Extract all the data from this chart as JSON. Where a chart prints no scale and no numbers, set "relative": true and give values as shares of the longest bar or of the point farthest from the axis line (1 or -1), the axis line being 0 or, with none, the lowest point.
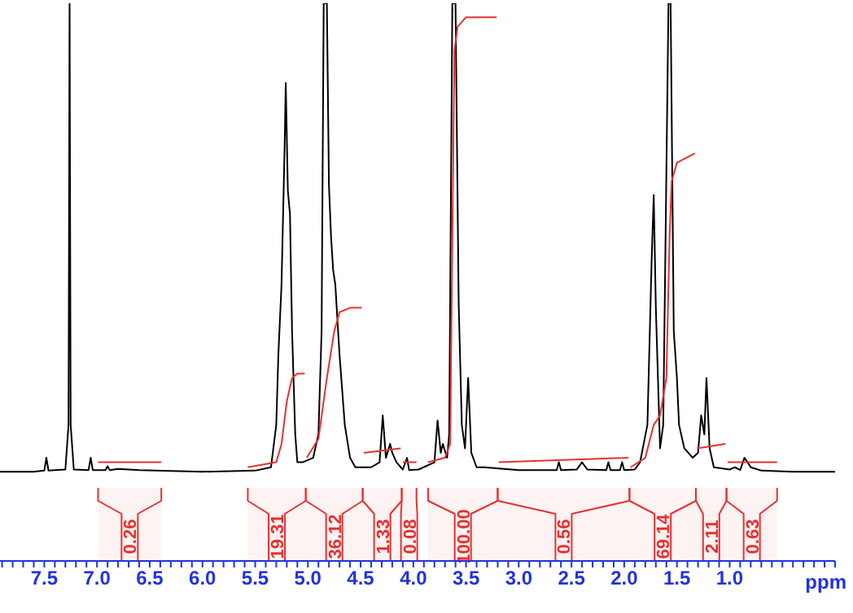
{
  "chart_data": {
    "type": "line",
    "relative": true,
    "xlabel": "ppm",
    "xlim": [
      7.92,
      0.0
    ],
    "xticks": [
      {
        "value": 7.9,
        "label": null
      },
      {
        "value": 7.8,
        "label": null
      },
      {
        "value": 7.7,
        "label": null
      },
      {
        "value": 7.6,
        "label": null
      },
      {
        "value": 7.5,
        "label": "7.5"
      },
      {
        "value": 7.4,
        "label": null
      },
      {
        "value": 7.3,
        "label": null
      },
      {
        "value": 7.2,
        "label": null
      },
      {
        "value": 7.1,
        "label": null
      },
      {
        "value": 7.0,
        "label": "7.0"
      },
      {
        "value": 6.9,
        "label": null
      },
      {
        "value": 6.8,
        "label": null
      },
      {
        "value": 6.7,
        "label": null
      },
      {
        "value": 6.6,
        "label": null
      },
      {
        "value": 6.5,
        "label": "6.5"
      },
      {
        "value": 6.4,
        "label": null
      },
      {
        "value": 6.3,
        "label": null
      },
      {
        "value": 6.2,
        "label": null
      },
      {
        "value": 6.1,
        "label": null
      },
      {
        "value": 6.0,
        "label": "6.0"
      },
      {
        "value": 5.9,
        "label": null
      },
      {
        "value": 5.8,
        "label": null
      },
      {
        "value": 5.7,
        "label": null
      },
      {
        "value": 5.6,
        "label": null
      },
      {
        "value": 5.5,
        "label": "5.5"
      },
      {
        "value": 5.4,
        "label": null
      },
      {
        "value": 5.3,
        "label": null
      },
      {
        "value": 5.2,
        "label": null
      },
      {
        "value": 5.1,
        "label": null
      },
      {
        "value": 5.0,
        "label": "5.0"
      },
      {
        "value": 4.9,
        "label": null
      },
      {
        "value": 4.8,
        "label": null
      },
      {
        "value": 4.7,
        "label": null
      },
      {
        "value": 4.6,
        "label": null
      },
      {
        "value": 4.5,
        "label": "4.5"
      },
      {
        "value": 4.4,
        "label": null
      },
      {
        "value": 4.3,
        "label": null
      },
      {
        "value": 4.2,
        "label": null
      },
      {
        "value": 4.1,
        "label": null
      },
      {
        "value": 4.0,
        "label": "4.0"
      },
      {
        "value": 3.9,
        "label": null
      },
      {
        "value": 3.8,
        "label": null
      },
      {
        "value": 3.7,
        "label": null
      },
      {
        "value": 3.6,
        "label": null
      },
      {
        "value": 3.5,
        "label": "3.5"
      },
      {
        "value": 3.4,
        "label": null
      },
      {
        "value": 3.3,
        "label": null
      },
      {
        "value": 3.2,
        "label": null
      },
      {
        "value": 3.1,
        "label": null
      },
      {
        "value": 3.0,
        "label": "3.0"
      },
      {
        "value": 2.9,
        "label": null
      },
      {
        "value": 2.8,
        "label": null
      },
      {
        "value": 2.7,
        "label": null
      },
      {
        "value": 2.6,
        "label": null
      },
      {
        "value": 2.5,
        "label": "2.5"
      },
      {
        "value": 2.4,
        "label": null
      },
      {
        "value": 2.3,
        "label": null
      },
      {
        "value": 2.2,
        "label": null
      },
      {
        "value": 2.1,
        "label": null
      },
      {
        "value": 2.0,
        "label": "2.0"
      },
      {
        "value": 1.9,
        "label": null
      },
      {
        "value": 1.8,
        "label": null
      },
      {
        "value": 1.7,
        "label": null
      },
      {
        "value": 1.6,
        "label": null
      },
      {
        "value": 1.5,
        "label": "1.5"
      },
      {
        "value": 1.4,
        "label": null
      },
      {
        "value": 1.3,
        "label": null
      },
      {
        "value": 1.2,
        "label": null
      },
      {
        "value": 1.1,
        "label": null
      },
      {
        "value": 1.0,
        "label": "1.0"
      },
      {
        "value": 0.9,
        "label": null
      },
      {
        "value": 0.8,
        "label": null
      },
      {
        "value": 0.7,
        "label": null
      },
      {
        "value": 0.6,
        "label": null
      },
      {
        "value": 0.5,
        "label": null
      },
      {
        "value": 0.4,
        "label": null
      },
      {
        "value": 0.3,
        "label": null
      },
      {
        "value": 0.2,
        "label": null
      },
      {
        "value": 0.1,
        "label": null
      },
      {
        "value": 0.0,
        "label": null
      }
    ],
    "series": [
      {
        "color": "#000000",
        "x": [
          7.92,
          7.6,
          7.5,
          7.48,
          7.46,
          7.3,
          7.27,
          7.26,
          7.25,
          7.22,
          7.08,
          7.06,
          7.04,
          6.92,
          6.9,
          6.88,
          6.8,
          6.6,
          6.0,
          5.5,
          5.35,
          5.3,
          5.28,
          5.25,
          5.22,
          5.21,
          5.19,
          5.17,
          5.15,
          5.12,
          5.1,
          5.05,
          4.95,
          4.9,
          4.87,
          4.85,
          4.82,
          4.8,
          4.78,
          4.76,
          4.74,
          4.7,
          4.65,
          4.6,
          4.55,
          4.4,
          4.32,
          4.29,
          4.26,
          4.22,
          4.2,
          4.16,
          4.1,
          4.06,
          4.04,
          3.95,
          3.8,
          3.77,
          3.74,
          3.72,
          3.68,
          3.66,
          3.63,
          3.6,
          3.57,
          3.54,
          3.51,
          3.48,
          3.45,
          3.4,
          3.33,
          3.0,
          2.64,
          2.62,
          2.6,
          2.45,
          2.4,
          2.35,
          2.17,
          2.15,
          2.13,
          2.04,
          2.02,
          2.0,
          1.9,
          1.85,
          1.78,
          1.74,
          1.72,
          1.7,
          1.66,
          1.63,
          1.58,
          1.56,
          1.53,
          1.5,
          1.48,
          1.43,
          1.35,
          1.3,
          1.27,
          1.24,
          1.22,
          1.19,
          1.15,
          1.0,
          0.95,
          0.9,
          0.86,
          0.83,
          0.8,
          0.7,
          0.4,
          0.0
        ],
        "values": [
          0.16,
          0.16,
          0.162,
          0.185,
          0.162,
          0.164,
          0.244,
          1,
          0.244,
          0.164,
          0.163,
          0.185,
          0.163,
          0.163,
          0.17,
          0.163,
          0.165,
          0.163,
          0.16,
          0.162,
          0.168,
          0.244,
          0.37,
          0.496,
          0.748,
          0.857,
          0.664,
          0.622,
          0.412,
          0.227,
          0.177,
          0.177,
          0.185,
          0.227,
          0.412,
          1,
          1,
          0.672,
          0.58,
          0.521,
          0.496,
          0.37,
          0.244,
          0.185,
          0.168,
          0.168,
          0.177,
          0.261,
          0.185,
          0.21,
          0.194,
          0.177,
          0.164,
          0.185,
          0.163,
          0.164,
          0.177,
          0.252,
          0.194,
          0.21,
          0.185,
          0.227,
          1,
          1,
          0.462,
          0.244,
          0.202,
          0.328,
          0.194,
          0.168,
          0.168,
          0.163,
          0.163,
          0.177,
          0.163,
          0.164,
          0.177,
          0.164,
          0.163,
          0.177,
          0.163,
          0.163,
          0.177,
          0.163,
          0.164,
          0.177,
          0.244,
          0.538,
          0.656,
          0.454,
          0.202,
          0.244,
          1,
          1,
          0.412,
          0.328,
          0.244,
          0.202,
          0.185,
          0.194,
          0.261,
          0.227,
          0.328,
          0.202,
          0.168,
          0.164,
          0.168,
          0.163,
          0.185,
          0.177,
          0.168,
          0.162,
          0.16,
          0.16
        ]
      },
      {
        "color": "#e83030",
        "x": [
          6.99,
          6.39,
          6.0,
          5.57,
          5.3,
          5.25,
          5.2,
          5.15,
          5.1,
          5.03,
          5.02,
          5.01,
          4.9,
          4.82,
          4.75,
          4.7,
          4.6,
          4.49,
          4.48,
          4.47,
          4.12,
          4.11,
          4.1,
          3.97,
          3.9,
          3.86,
          3.7,
          3.65,
          3.63,
          3.61,
          3.58,
          3.5,
          3.21,
          3.2,
          3.19,
          1.96,
          1.95,
          1.94,
          1.8,
          1.72,
          1.66,
          1.6,
          1.57,
          1.55,
          1.5,
          1.33,
          1.32,
          1.31,
          1.04,
          1.03,
          1.02,
          0.55
        ],
        "values": [
          0.177,
          0.177,
          null,
          0.168,
          0.177,
          0.21,
          0.286,
          0.328,
          0.336,
          0.336,
          null,
          0.185,
          0.219,
          0.328,
          0.412,
          0.446,
          0.454,
          0.454,
          null,
          0.194,
          0.202,
          null,
          0.177,
          0.177,
          null,
          0.177,
          0.185,
          0.21,
          0.58,
          0.916,
          0.958,
          0.975,
          0.975,
          null,
          0.177,
          0.185,
          null,
          0.168,
          0.185,
          0.244,
          0.261,
          0.328,
          0.58,
          0.681,
          0.714,
          0.731,
          null,
          0.202,
          0.21,
          null,
          0.177,
          0.177
        ]
      }
    ],
    "bands": [
      {
        "axis": "x",
        "from": 6.99,
        "to": 6.39,
        "label": "0.26",
        "color": "#e83030"
      },
      {
        "axis": "x",
        "from": 5.57,
        "to": 5.02,
        "label": "19.31",
        "color": "#e83030"
      },
      {
        "axis": "x",
        "from": 5.02,
        "to": 4.48,
        "label": "36.12",
        "color": "#e83030"
      },
      {
        "axis": "x",
        "from": 4.48,
        "to": 4.11,
        "label": "1.33",
        "color": "#e83030"
      },
      {
        "axis": "x",
        "from": 4.11,
        "to": 3.97,
        "label": "0.08",
        "color": "#e83030"
      },
      {
        "axis": "x",
        "from": 3.86,
        "to": 3.2,
        "label": "100.00",
        "color": "#e83030"
      },
      {
        "axis": "x",
        "from": 3.2,
        "to": 1.95,
        "label": "0.56",
        "color": "#e83030"
      },
      {
        "axis": "x",
        "from": 1.95,
        "to": 1.32,
        "label": "69.14",
        "color": "#e83030"
      },
      {
        "axis": "x",
        "from": 1.32,
        "to": 1.03,
        "label": "2.11",
        "color": "#e83030"
      },
      {
        "axis": "x",
        "from": 1.03,
        "to": 0.55,
        "label": "0.63",
        "color": "#e83030"
      }
    ]
  }
}
